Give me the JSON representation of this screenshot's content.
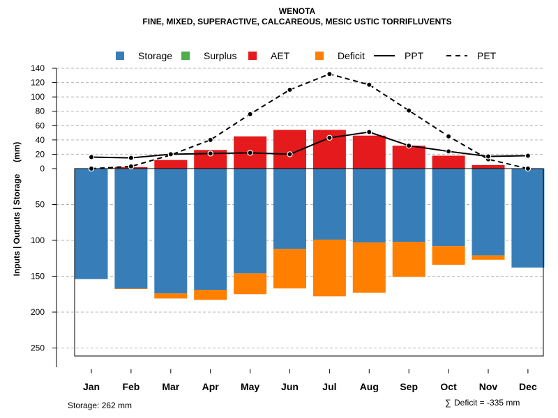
{
  "chart_data": {
    "type": "bar",
    "title": "WENOTA",
    "subtitle": "FINE, MIXED, SUPERACTIVE, CALCAREOUS, MESIC USTIC TORRIFLUVENTS",
    "ylabel": "Inputs | Outputs | Storage     (mm)",
    "categories": [
      "Jan",
      "Feb",
      "Mar",
      "Apr",
      "May",
      "Jun",
      "Jul",
      "Aug",
      "Sep",
      "Oct",
      "Nov",
      "Dec"
    ],
    "upper_ticks": [
      0,
      20,
      40,
      60,
      80,
      100,
      120,
      140
    ],
    "lower_ticks": [
      50,
      100,
      150,
      200,
      250
    ],
    "ylim_upper": [
      0,
      140
    ],
    "ylim_lower": [
      0,
      262
    ],
    "legend": [
      {
        "label": "Storage",
        "color": "#377eb8",
        "kind": "box"
      },
      {
        "label": "Surplus",
        "color": "#4daf4a",
        "kind": "box"
      },
      {
        "label": "AET",
        "color": "#e41a1c",
        "kind": "box"
      },
      {
        "label": "Deficit",
        "color": "#ff7f00",
        "kind": "box"
      },
      {
        "label": "PPT",
        "color": "#000000",
        "kind": "solid"
      },
      {
        "label": "PET",
        "color": "#000000",
        "kind": "dashed"
      }
    ],
    "series": [
      {
        "name": "Storage",
        "color": "#377eb8",
        "values": [
          154,
          167,
          174,
          169,
          146,
          112,
          99,
          103,
          102,
          108,
          121,
          138
        ]
      },
      {
        "name": "Deficit",
        "color": "#ff7f00",
        "values": [
          0,
          1,
          7,
          14,
          29,
          55,
          79,
          70,
          49,
          26,
          6,
          0
        ]
      },
      {
        "name": "Surplus",
        "color": "#4daf4a",
        "values": [
          0,
          0,
          0,
          0,
          0,
          0,
          0,
          0,
          0,
          0,
          0,
          0
        ]
      },
      {
        "name": "AET",
        "color": "#e41a1c",
        "values": [
          0,
          2,
          12,
          26,
          45,
          54,
          54,
          46,
          32,
          18,
          5,
          0
        ]
      },
      {
        "name": "PPT",
        "color": "#000000",
        "values": [
          16,
          15,
          20,
          21,
          22,
          20,
          43,
          51,
          32,
          24,
          17,
          18
        ]
      },
      {
        "name": "PET",
        "color": "#000000",
        "values": [
          0,
          3,
          19,
          40,
          76,
          110,
          132,
          117,
          81,
          45,
          13,
          0
        ]
      }
    ]
  },
  "footer": {
    "storage": "Storage: 262 mm",
    "deficit_symbol": "∑",
    "deficit": "Deficit = -335 mm"
  }
}
